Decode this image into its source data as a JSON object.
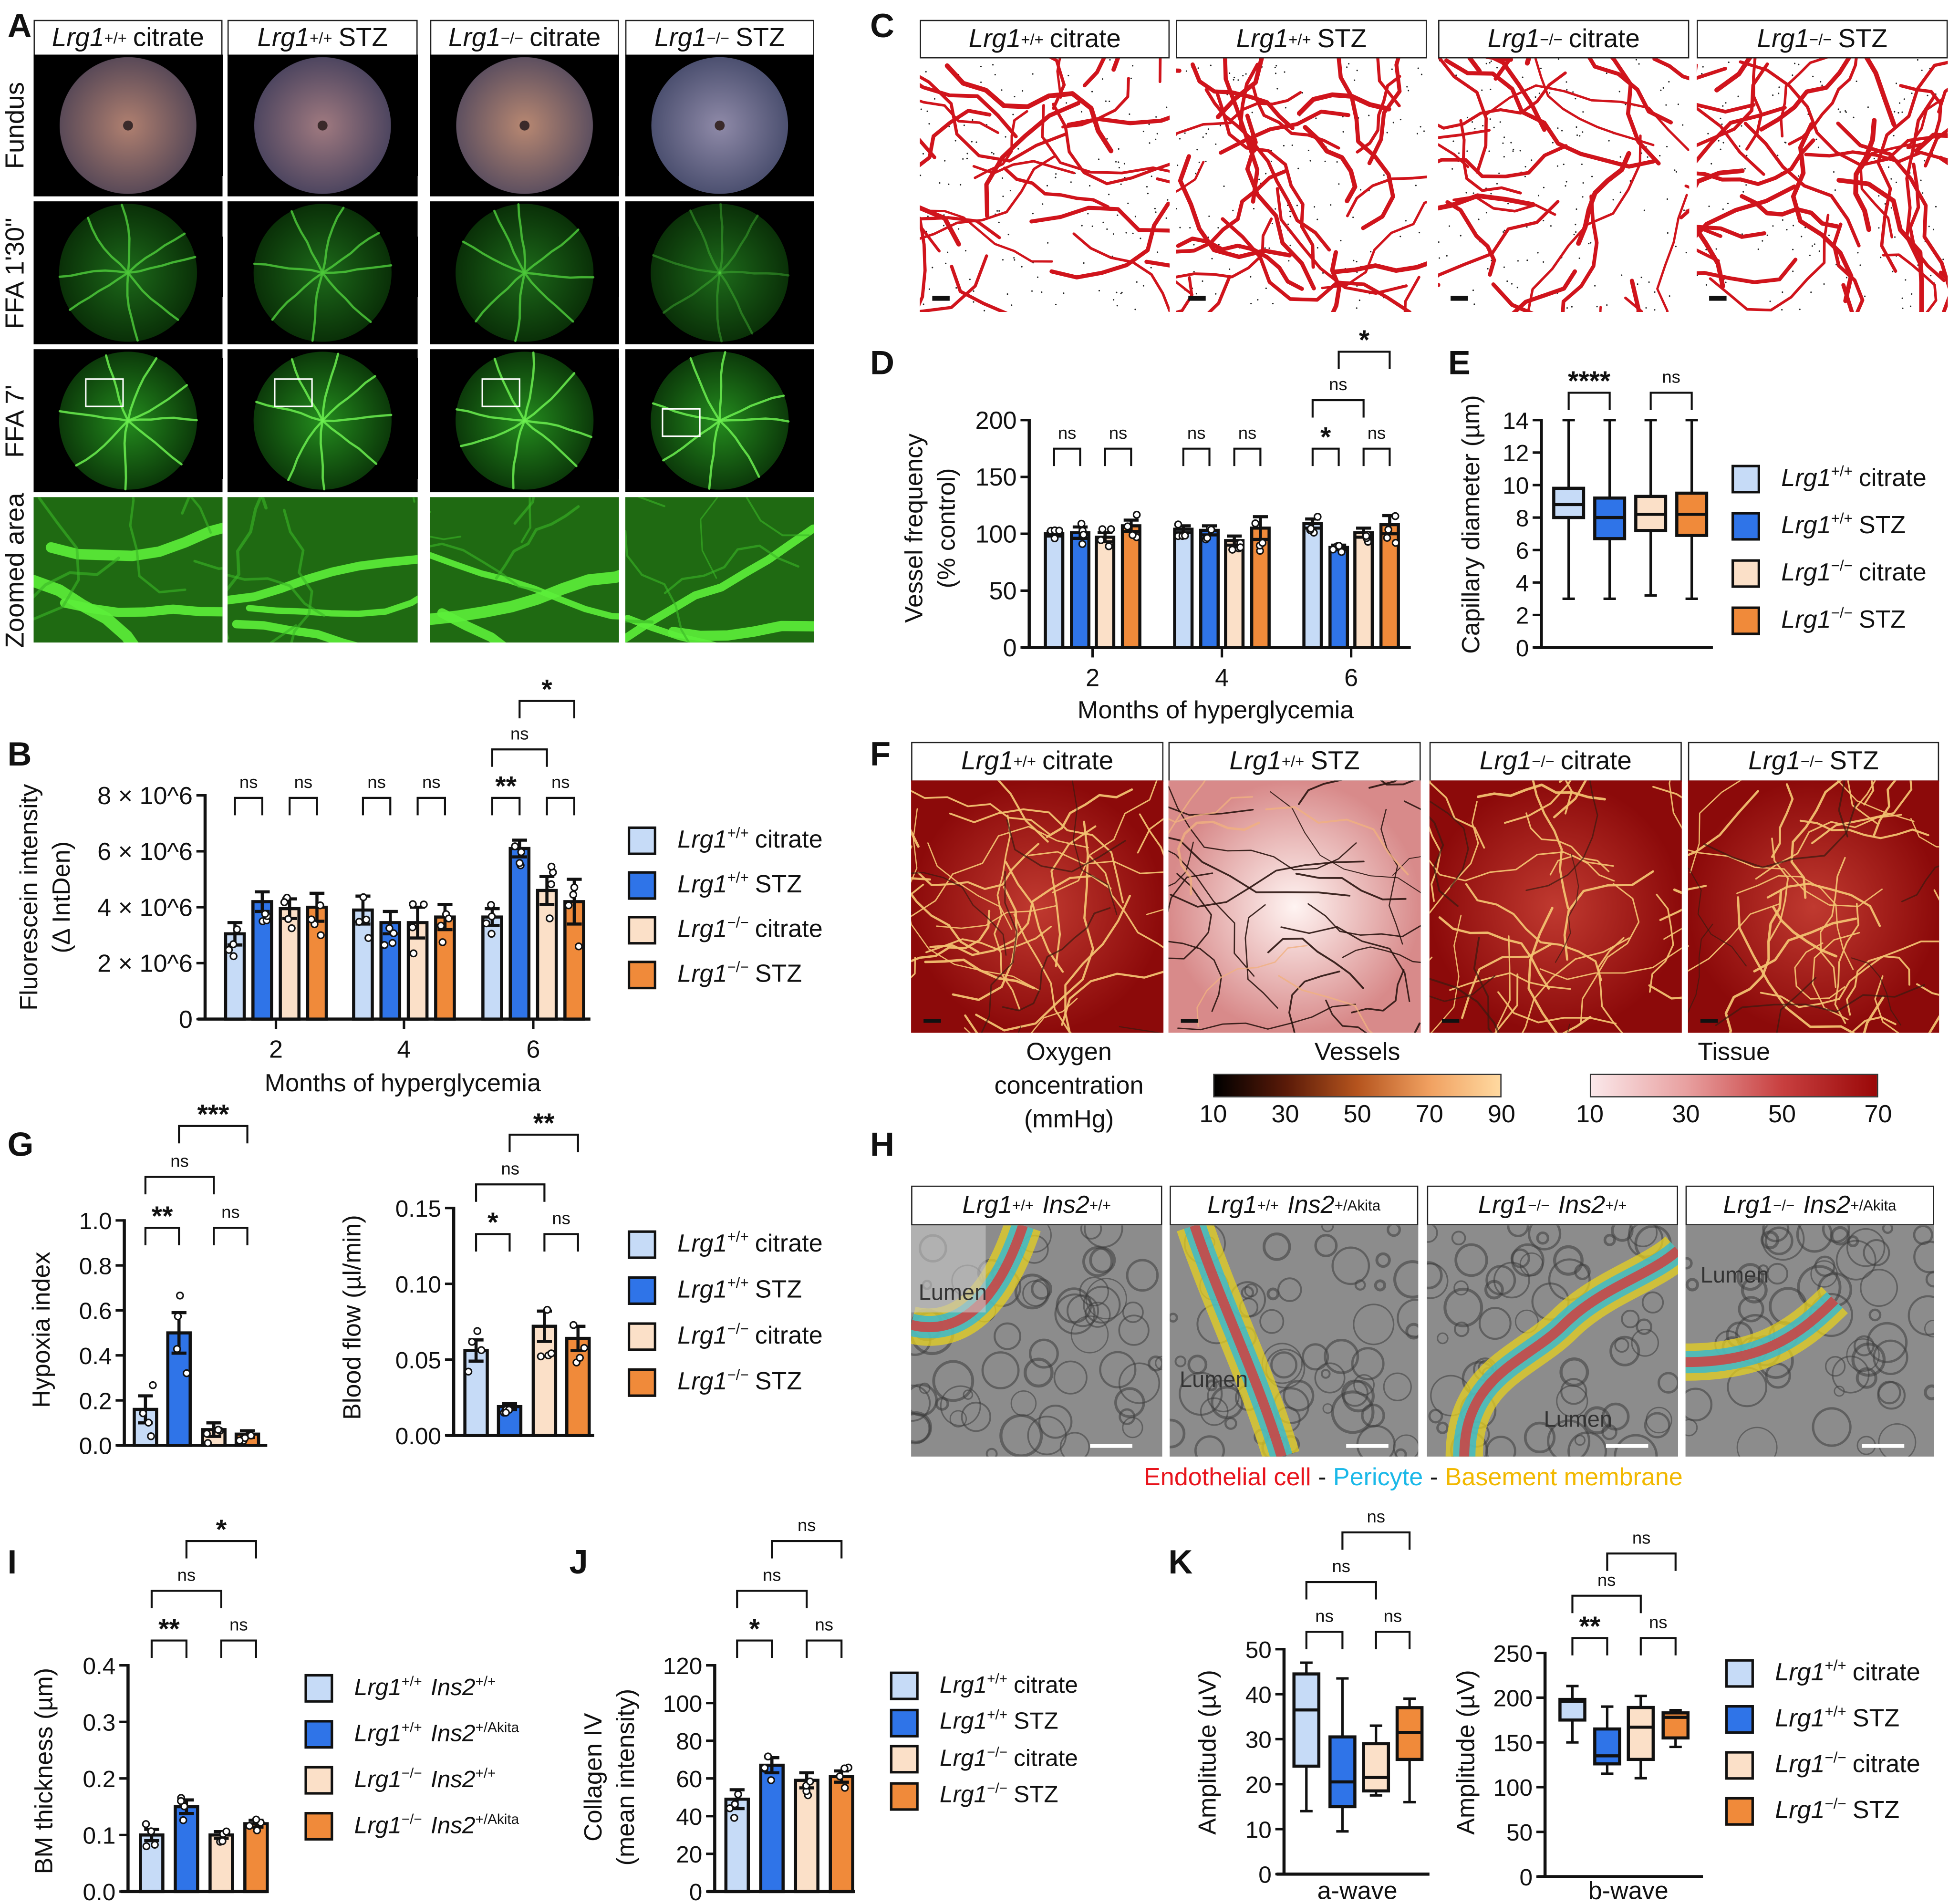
{
  "panel_letters": [
    "A",
    "B",
    "C",
    "D",
    "E",
    "F",
    "G",
    "H",
    "I",
    "J",
    "K"
  ],
  "groups": [
    {
      "gene": "Lrg1",
      "geno": "+/+",
      "cond": "citrate",
      "color": "#c6dbf7"
    },
    {
      "gene": "Lrg1",
      "geno": "+/+",
      "cond": "STZ",
      "color": "#2f74e8"
    },
    {
      "gene": "Lrg1",
      "geno": "−/−",
      "cond": "citrate",
      "color": "#fbe0c8"
    },
    {
      "gene": "Lrg1",
      "geno": "−/−",
      "cond": "STZ",
      "color": "#f08a3a"
    }
  ],
  "akita_groups": [
    {
      "gene": "Lrg1",
      "geno": "+/+",
      "gene2": "Ins2",
      "geno2": "+/+",
      "color": "#c6dbf7"
    },
    {
      "gene": "Lrg1",
      "geno": "+/+",
      "gene2": "Ins2",
      "geno2": "+/Akita",
      "color": "#2f74e8"
    },
    {
      "gene": "Lrg1",
      "geno": "−/−",
      "gene2": "Ins2",
      "geno2": "+/+",
      "color": "#fbe0c8"
    },
    {
      "gene": "Lrg1",
      "geno": "−/−",
      "gene2": "Ins2",
      "geno2": "+/Akita",
      "color": "#f08a3a"
    }
  ],
  "panelA": {
    "rows": [
      "Fundus",
      "FFA 1'30\"",
      "FFA 7'",
      "Zoomed area"
    ]
  },
  "panelF": {
    "colorbar_title": [
      "Oxygen",
      "concentration",
      "(mmHg)"
    ],
    "vessels": {
      "label": "Vessels",
      "ticks": [
        "10",
        "30",
        "50",
        "70",
        "90"
      ],
      "colors": [
        "#000000",
        "#5a1a08",
        "#b5541e",
        "#f0a060",
        "#ffd9a0"
      ]
    },
    "tissue": {
      "label": "Tissue",
      "ticks": [
        "10",
        "30",
        "50",
        "70"
      ],
      "colors": [
        "#fbe8ea",
        "#e8a0a0",
        "#c84040",
        "#9a0808"
      ]
    }
  },
  "panelH": {
    "lumen": "Lumen",
    "legend": [
      {
        "text": "Endothelial cell",
        "color": "#e8141c"
      },
      {
        "text": " - ",
        "color": "#111111"
      },
      {
        "text": "Pericyte",
        "color": "#1ab8e8"
      },
      {
        "text": " - ",
        "color": "#111111"
      },
      {
        "text": "Basement membrane",
        "color": "#f2b800"
      }
    ]
  },
  "chart_data": [
    {
      "id": "B",
      "type": "bar",
      "ylabel": [
        "Fluorescein intensity",
        "(Δ IntDen)"
      ],
      "xlabel": "Months of hyperglycemia",
      "xticklabels": [
        "2",
        "4",
        "6"
      ],
      "ylim": [
        0,
        8000000
      ],
      "yticks": [
        0,
        2000000,
        4000000,
        6000000,
        8000000
      ],
      "yticklabels": [
        "0",
        "2 × 10^6",
        "4 × 10^6",
        "6 × 10^6",
        "8 × 10^6"
      ],
      "series": "groups",
      "values": [
        3050000,
        4200000,
        3950000,
        4000000,
        3900000,
        3450000,
        3450000,
        3650000,
        3650000,
        6100000,
        4600000,
        4200000
      ],
      "sem": [
        400000,
        350000,
        350000,
        500000,
        500000,
        400000,
        550000,
        450000,
        300000,
        300000,
        500000,
        800000
      ],
      "significance": [
        {
          "a": 0,
          "b": 1,
          "level": 0,
          "label": "ns"
        },
        {
          "a": 2,
          "b": 3,
          "level": 0,
          "label": "ns"
        },
        {
          "a": 4,
          "b": 5,
          "level": 0,
          "label": "ns"
        },
        {
          "a": 6,
          "b": 7,
          "level": 0,
          "label": "ns"
        },
        {
          "a": 8,
          "b": 9,
          "level": 0,
          "label": "**"
        },
        {
          "a": 10,
          "b": 11,
          "level": 0,
          "label": "ns"
        },
        {
          "a": 8,
          "b": 10,
          "level": 1,
          "label": "ns"
        },
        {
          "a": 9,
          "b": 11,
          "level": 2,
          "label": "*"
        }
      ]
    },
    {
      "id": "D",
      "type": "bar",
      "ylabel": [
        "Vessel frequency",
        "(% control)"
      ],
      "xlabel": "Months of hyperglycemia",
      "xticklabels": [
        "2",
        "4",
        "6"
      ],
      "ylim": [
        0,
        200
      ],
      "yticks": [
        0,
        50,
        100,
        150,
        200
      ],
      "yticklabels": [
        "0",
        "50",
        "100",
        "150",
        "200"
      ],
      "series": "groups",
      "values": [
        100,
        101,
        97,
        107,
        104,
        103,
        94,
        105,
        109,
        88,
        101,
        108
      ],
      "sem": [
        2,
        5,
        4,
        5,
        3,
        4,
        4,
        10,
        4,
        2,
        4,
        8
      ],
      "significance": [
        {
          "a": 0,
          "b": 1,
          "level": 0,
          "label": "ns"
        },
        {
          "a": 2,
          "b": 3,
          "level": 0,
          "label": "ns"
        },
        {
          "a": 4,
          "b": 5,
          "level": 0,
          "label": "ns"
        },
        {
          "a": 6,
          "b": 7,
          "level": 0,
          "label": "ns"
        },
        {
          "a": 8,
          "b": 9,
          "level": 0,
          "label": "*"
        },
        {
          "a": 10,
          "b": 11,
          "level": 0,
          "label": "ns"
        },
        {
          "a": 8,
          "b": 10,
          "level": 1,
          "label": "ns"
        },
        {
          "a": 9,
          "b": 11,
          "level": 2,
          "label": "*"
        }
      ]
    },
    {
      "id": "E",
      "type": "box",
      "ylabel": [
        "Capillary diameter (µm)"
      ],
      "ylim": [
        0,
        14
      ],
      "yticks": [
        0,
        2,
        4,
        6,
        8,
        10,
        12,
        14
      ],
      "yticklabels": [
        "0",
        "2",
        "4",
        "6",
        "8",
        "10",
        "12",
        "14"
      ],
      "series": "groups",
      "boxes": [
        {
          "min": 3,
          "q1": 8,
          "median": 8.8,
          "q3": 9.8,
          "max": 14
        },
        {
          "min": 3,
          "q1": 6.7,
          "median": 8,
          "q3": 9.2,
          "max": 14
        },
        {
          "min": 3.2,
          "q1": 7.2,
          "median": 8.2,
          "q3": 9.3,
          "max": 14
        },
        {
          "min": 3,
          "q1": 6.9,
          "median": 8.2,
          "q3": 9.5,
          "max": 14
        }
      ],
      "significance": [
        {
          "a": 0,
          "b": 1,
          "level": 0,
          "label": "****"
        },
        {
          "a": 2,
          "b": 3,
          "level": 0,
          "label": "ns"
        }
      ]
    },
    {
      "id": "G1",
      "type": "bar",
      "ylabel": [
        "Hypoxia index"
      ],
      "ylim": [
        0,
        1
      ],
      "yticks": [
        0,
        0.2,
        0.4,
        0.6,
        0.8,
        1
      ],
      "yticklabels": [
        "0.0",
        "0.2",
        "0.4",
        "0.6",
        "0.8",
        "1.0"
      ],
      "series": "groups",
      "values": [
        0.16,
        0.5,
        0.07,
        0.05
      ],
      "sem": [
        0.06,
        0.09,
        0.03,
        0.015
      ],
      "significance": [
        {
          "a": 0,
          "b": 1,
          "level": 0,
          "label": "**"
        },
        {
          "a": 2,
          "b": 3,
          "level": 0,
          "label": "ns"
        },
        {
          "a": 0,
          "b": 2,
          "level": 1,
          "label": "ns"
        },
        {
          "a": 1,
          "b": 3,
          "level": 2,
          "label": "***"
        }
      ]
    },
    {
      "id": "G2",
      "type": "bar",
      "ylabel": [
        "Blood flow (µl/min)"
      ],
      "ylim": [
        0,
        0.15
      ],
      "yticks": [
        0,
        0.05,
        0.1,
        0.15
      ],
      "yticklabels": [
        "0.00",
        "0.05",
        "0.10",
        "0.15"
      ],
      "series": "groups",
      "values": [
        0.056,
        0.019,
        0.072,
        0.064
      ],
      "sem": [
        0.007,
        0.002,
        0.01,
        0.008
      ],
      "significance": [
        {
          "a": 0,
          "b": 1,
          "level": 0,
          "label": "*"
        },
        {
          "a": 2,
          "b": 3,
          "level": 0,
          "label": "ns"
        },
        {
          "a": 0,
          "b": 2,
          "level": 1,
          "label": "ns"
        },
        {
          "a": 1,
          "b": 3,
          "level": 2,
          "label": "**"
        }
      ]
    },
    {
      "id": "I",
      "type": "bar",
      "ylabel": [
        "BM thickness (µm)"
      ],
      "ylim": [
        0,
        0.4
      ],
      "yticks": [
        0,
        0.1,
        0.2,
        0.3,
        0.4
      ],
      "yticklabels": [
        "0.0",
        "0.1",
        "0.2",
        "0.3",
        "0.4"
      ],
      "series": "akita_groups",
      "values": [
        0.1,
        0.15,
        0.1,
        0.12
      ],
      "sem": [
        0.01,
        0.012,
        0.006,
        0.006
      ],
      "significance": [
        {
          "a": 0,
          "b": 1,
          "level": 0,
          "label": "**"
        },
        {
          "a": 2,
          "b": 3,
          "level": 0,
          "label": "ns"
        },
        {
          "a": 0,
          "b": 2,
          "level": 1,
          "label": "ns"
        },
        {
          "a": 1,
          "b": 3,
          "level": 2,
          "label": "*"
        }
      ]
    },
    {
      "id": "J",
      "type": "bar",
      "ylabel": [
        "Collagen IV",
        "(mean intensity)"
      ],
      "ylim": [
        0,
        120
      ],
      "yticks": [
        0,
        20,
        40,
        60,
        80,
        100,
        120
      ],
      "yticklabels": [
        "0",
        "20",
        "40",
        "60",
        "80",
        "100",
        "120"
      ],
      "series": "groups",
      "values": [
        49,
        67,
        59,
        61
      ],
      "sem": [
        5,
        4,
        4,
        3
      ],
      "significance": [
        {
          "a": 0,
          "b": 1,
          "level": 0,
          "label": "*"
        },
        {
          "a": 2,
          "b": 3,
          "level": 0,
          "label": "ns"
        },
        {
          "a": 0,
          "b": 2,
          "level": 1,
          "label": "ns"
        },
        {
          "a": 1,
          "b": 3,
          "level": 2,
          "label": "ns"
        }
      ]
    },
    {
      "id": "K1",
      "type": "box",
      "ylabel": [
        "Amplitude (µV)"
      ],
      "xlabel": "a-wave",
      "ylim": [
        0,
        50
      ],
      "yticks": [
        0,
        10,
        20,
        30,
        40,
        50
      ],
      "yticklabels": [
        "0",
        "10",
        "20",
        "30",
        "40",
        "50"
      ],
      "series": "groups",
      "boxes": [
        {
          "min": 14,
          "q1": 24,
          "median": 36.5,
          "q3": 44.5,
          "max": 47
        },
        {
          "min": 9.5,
          "q1": 15,
          "median": 20.5,
          "q3": 30.5,
          "max": 43.5
        },
        {
          "min": 17.5,
          "q1": 18.5,
          "median": 21.5,
          "q3": 29,
          "max": 33
        },
        {
          "min": 16,
          "q1": 25.5,
          "median": 31.5,
          "q3": 37,
          "max": 39
        }
      ],
      "significance": [
        {
          "a": 0,
          "b": 1,
          "level": 0,
          "label": "ns"
        },
        {
          "a": 2,
          "b": 3,
          "level": 0,
          "label": "ns"
        },
        {
          "a": 0,
          "b": 2,
          "level": 1,
          "label": "ns"
        },
        {
          "a": 1,
          "b": 3,
          "level": 2,
          "label": "ns"
        }
      ]
    },
    {
      "id": "K2",
      "type": "box",
      "ylabel": [
        "Amplitude (µV)"
      ],
      "xlabel": "b-wave",
      "ylim": [
        0,
        250
      ],
      "yticks": [
        0,
        50,
        100,
        150,
        200,
        250
      ],
      "yticklabels": [
        "0",
        "50",
        "100",
        "150",
        "200",
        "250"
      ],
      "series": "groups",
      "boxes": [
        {
          "min": 150,
          "q1": 175,
          "median": 196,
          "q3": 198,
          "max": 213
        },
        {
          "min": 115,
          "q1": 126,
          "median": 135,
          "q3": 165,
          "max": 190
        },
        {
          "min": 110,
          "q1": 131,
          "median": 167,
          "q3": 189,
          "max": 202
        },
        {
          "min": 145,
          "q1": 155,
          "median": 178,
          "q3": 183,
          "max": 186
        }
      ],
      "significance": [
        {
          "a": 0,
          "b": 1,
          "level": 0,
          "label": "**"
        },
        {
          "a": 2,
          "b": 3,
          "level": 0,
          "label": "ns"
        },
        {
          "a": 0,
          "b": 2,
          "level": 1,
          "label": "ns"
        },
        {
          "a": 1,
          "b": 3,
          "level": 2,
          "label": "ns"
        }
      ]
    }
  ]
}
